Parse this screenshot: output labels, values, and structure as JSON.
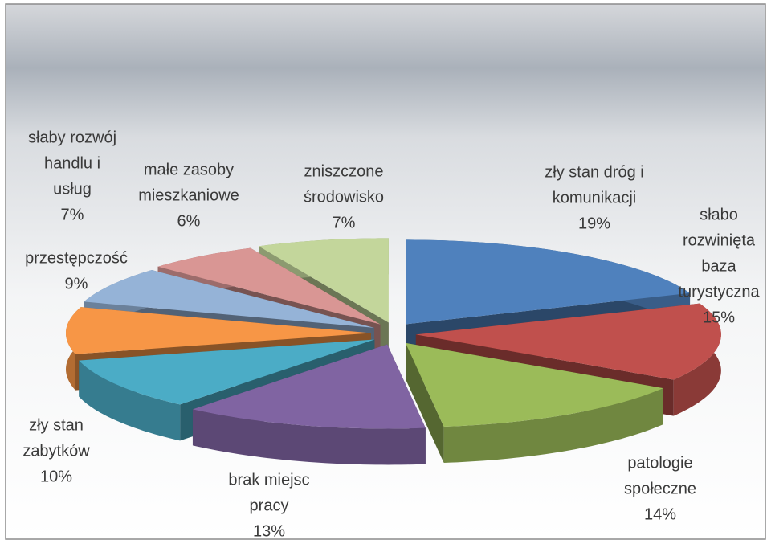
{
  "chart_data": {
    "type": "pie3d",
    "categories": [
      [
        "zły stan dróg i",
        "komunikacji"
      ],
      [
        "słabo",
        "rozwinięta",
        "baza",
        "turystyczna"
      ],
      [
        "patologie",
        "społeczne"
      ],
      [
        "brak miejsc",
        "pracy"
      ],
      [
        "zły stan",
        "zabytków"
      ],
      [
        "przestępczość"
      ],
      [
        "słaby rozwój",
        "handlu i",
        "usług"
      ],
      [
        "małe zasoby",
        "mieszkaniowe"
      ],
      [
        "zniszczone",
        "środowisko"
      ]
    ],
    "values": [
      19,
      15,
      14,
      13,
      10,
      9,
      7,
      6,
      7
    ],
    "value_labels": [
      "19%",
      "15%",
      "14%",
      "13%",
      "10%",
      "9%",
      "7%",
      "6%",
      "7%"
    ],
    "colors": [
      "#4f81bd",
      "#c0504d",
      "#9bbb59",
      "#8064a2",
      "#4bacc6",
      "#f79646",
      "#95b3d7",
      "#d99694",
      "#c3d69b"
    ]
  }
}
